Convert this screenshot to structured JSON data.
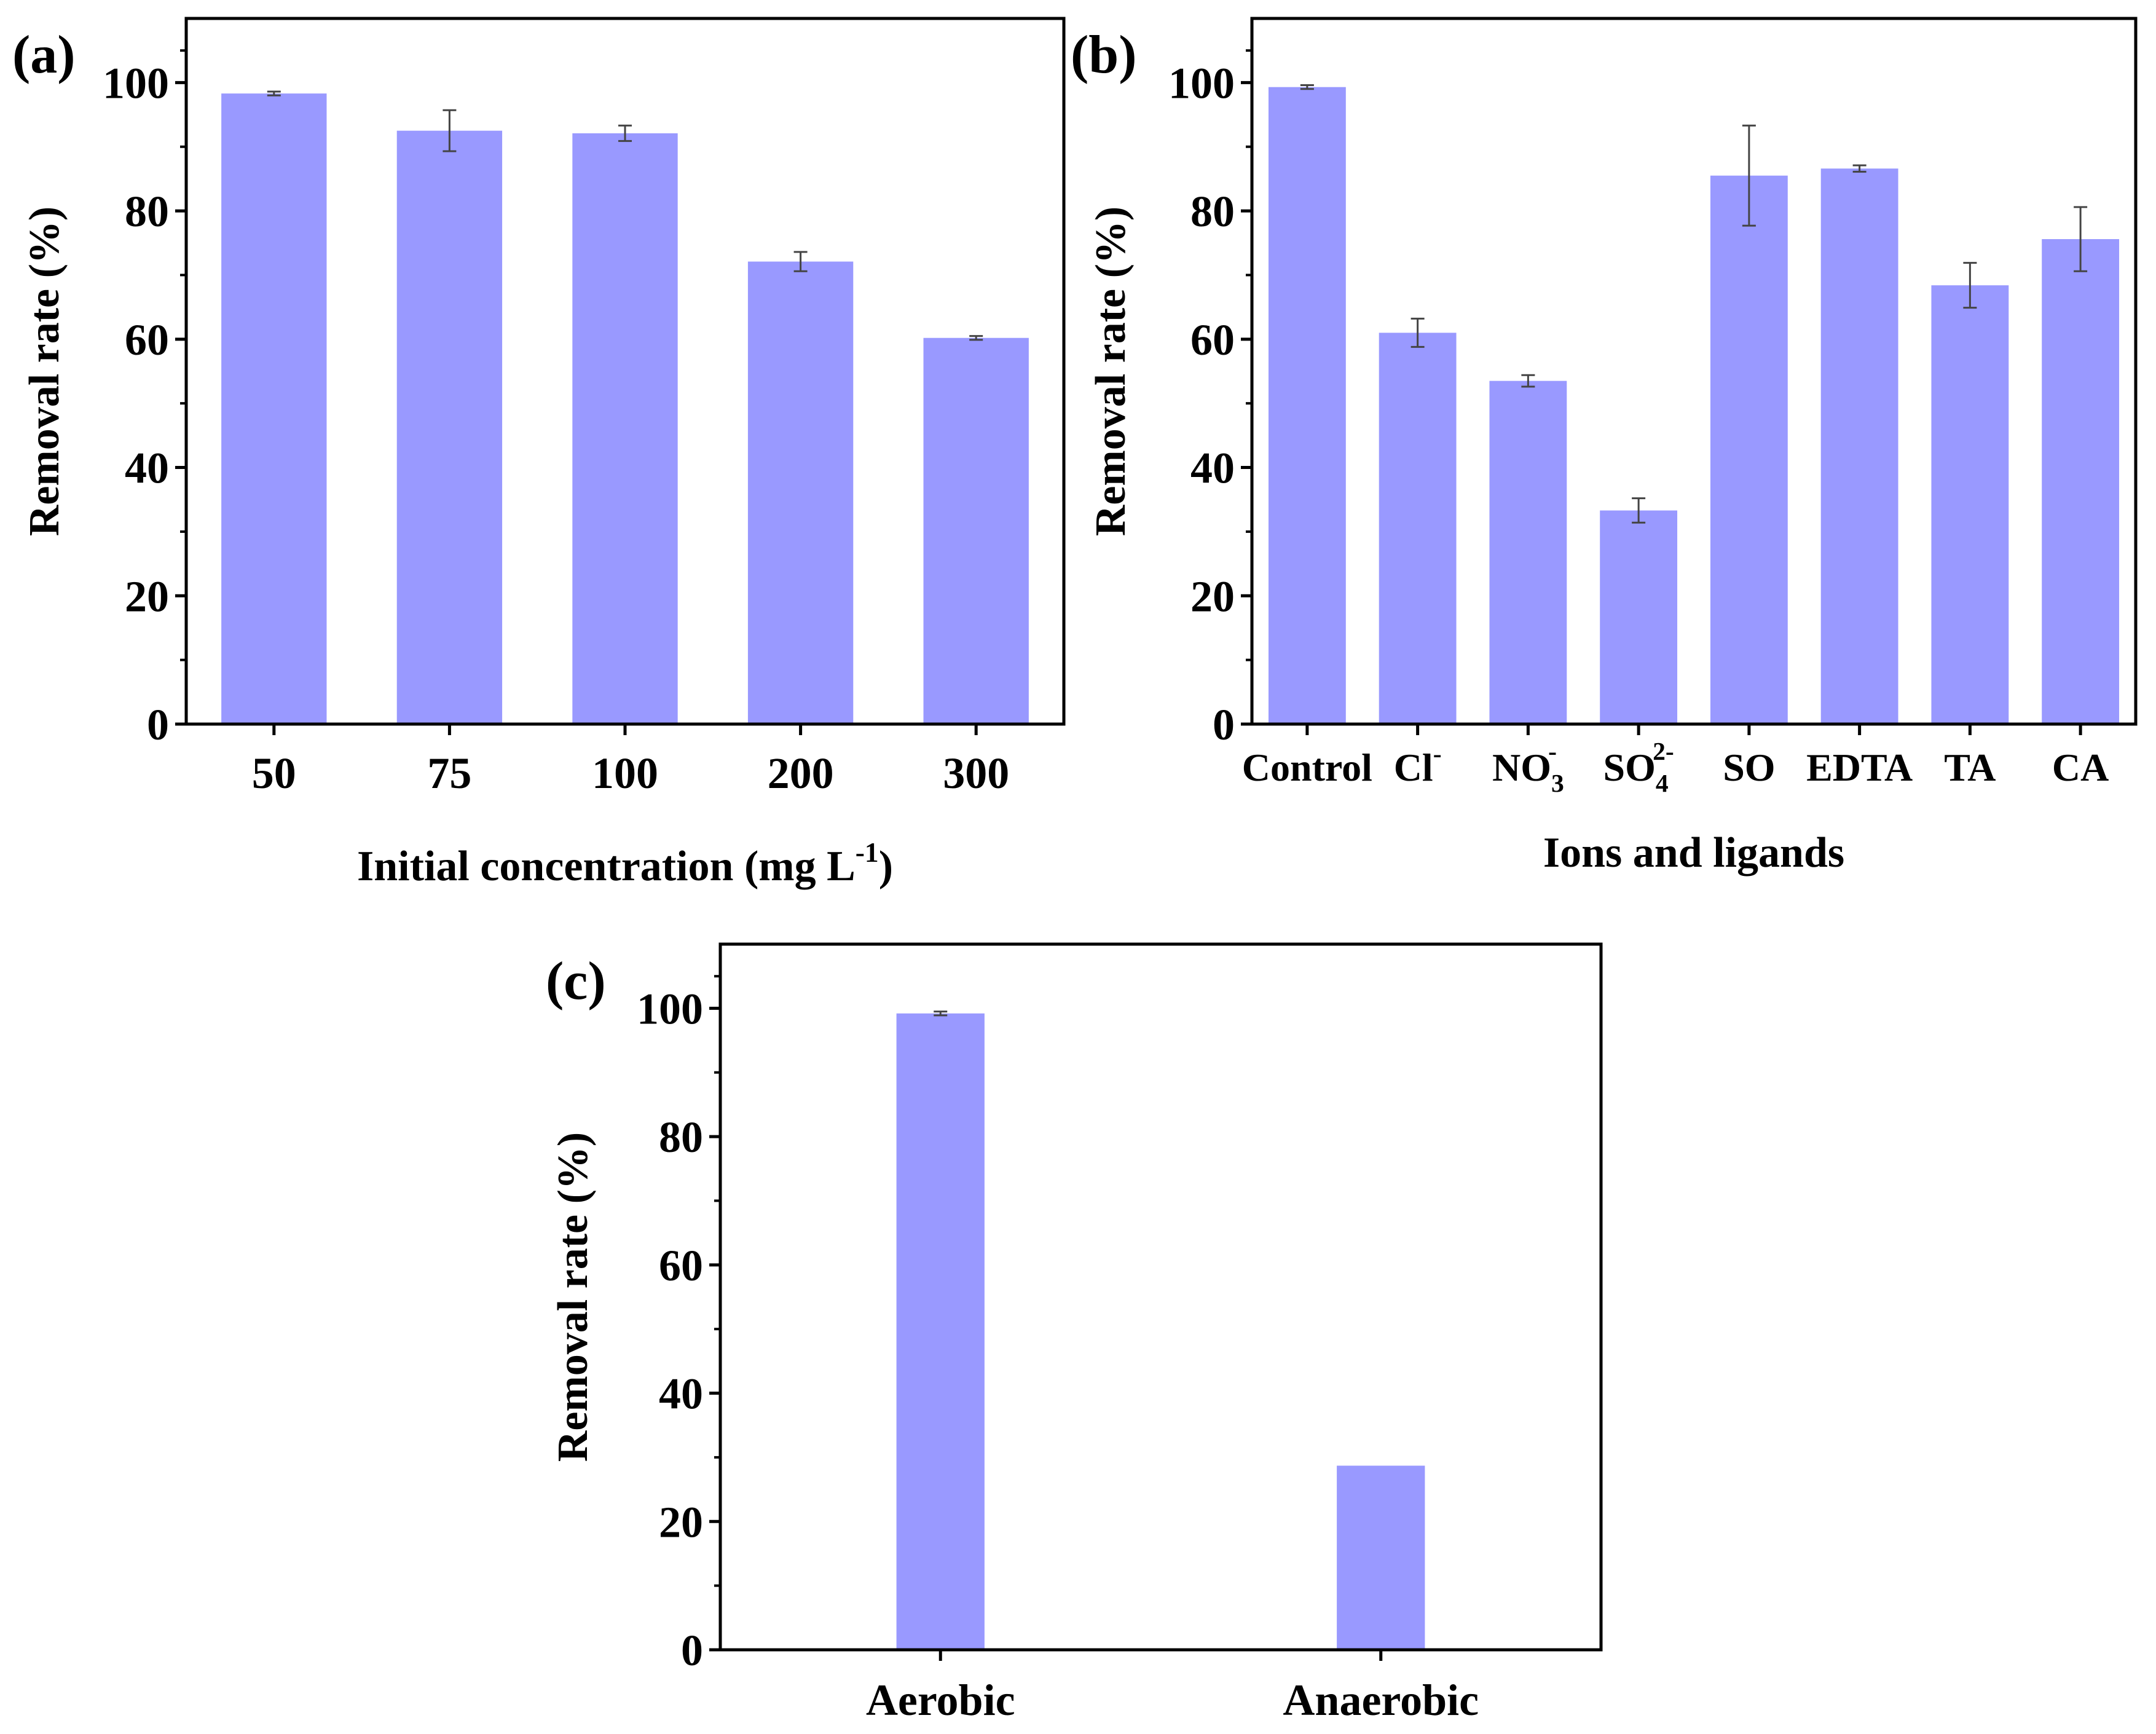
{
  "chart_data": [
    {
      "type": "bar",
      "panel_label": "(a)",
      "title": "",
      "xlabel": "Initial  concentration (mg L",
      "xlabel_sup": "-1",
      "xlabel_end": ")",
      "ylabel": "Removal rate (%)",
      "ylim": [
        0,
        110
      ],
      "yticks": [
        0,
        20,
        40,
        60,
        80,
        100
      ],
      "categories": [
        {
          "text": "50"
        },
        {
          "text": "75"
        },
        {
          "text": "100"
        },
        {
          "text": "200"
        },
        {
          "text": "300"
        }
      ],
      "values": [
        98.3,
        92.5,
        92.1,
        72.1,
        60.2
      ],
      "errors": [
        0.3,
        3.2,
        1.2,
        1.5,
        0.3
      ],
      "bar_color": "#9999ff"
    },
    {
      "type": "bar",
      "panel_label": "(b)",
      "title": "",
      "xlabel": "Ions and ligands",
      "ylabel": "Removal rate (%)",
      "ylim": [
        0,
        110
      ],
      "yticks": [
        0,
        20,
        40,
        60,
        80,
        100
      ],
      "categories": [
        {
          "text": "Control"
        },
        {
          "text": "Cl",
          "sup": "-"
        },
        {
          "text": "NO",
          "sub": "3",
          "sup": "-"
        },
        {
          "text": "SO",
          "sub": "4",
          "sup": "2-"
        },
        {
          "text": "SO"
        },
        {
          "text": "EDTA"
        },
        {
          "text": "TA"
        },
        {
          "text": "CA"
        }
      ],
      "values": [
        99.3,
        61.0,
        53.5,
        33.3,
        85.5,
        86.6,
        68.4,
        75.6
      ],
      "errors": [
        0.3,
        2.2,
        0.9,
        1.9,
        7.8,
        0.5,
        3.5,
        5.0
      ],
      "bar_color": "#9999ff"
    },
    {
      "type": "bar",
      "panel_label": "(c)",
      "title": "",
      "xlabel": "",
      "ylabel": "Removal rate (%)",
      "ylim": [
        0,
        110
      ],
      "yticks": [
        0,
        20,
        40,
        60,
        80,
        100
      ],
      "categories": [
        {
          "text": "Aerobic"
        },
        {
          "text": "Anaerobic"
        }
      ],
      "values": [
        99.2,
        28.7
      ],
      "errors": [
        0.3,
        0
      ],
      "bar_color": "#9999ff"
    }
  ]
}
